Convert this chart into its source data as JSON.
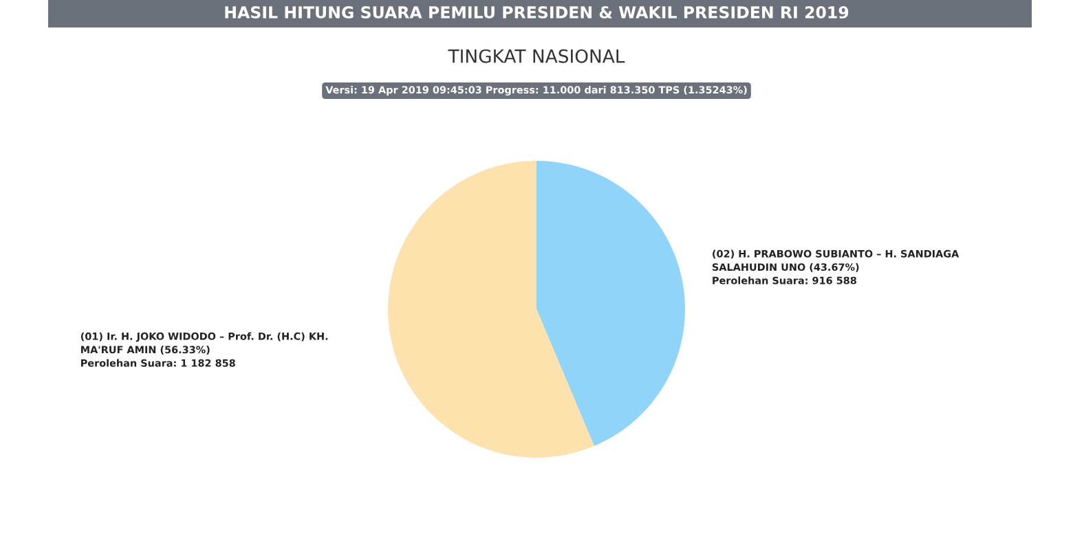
{
  "chart_data": {
    "type": "pie",
    "title": "TINGKAT NASIONAL",
    "subtitle": "Versi: 19 Apr 2019 09:45:03 Progress: 11.000 dari 813.350 TPS (1.35243%)",
    "annotations": [
      "HASIL HITUNG SUARA PEMILU PRESIDEN & WAKIL PRESIDEN RI 2019"
    ],
    "categories": [
      "(02) H. PRABOWO SUBIANTO – H. SANDIAGA\nSALAHUDIN UNO (43.67%)\nPerolehan Suara: 916 588",
      "(01) Ir. H. JOKO WIDODO – Prof. Dr. (H.C) KH.\nMA'RUF AMIN (56.33%)\nPerolehan Suara: 1 182 858"
    ],
    "values": [
      916588,
      1182858
    ],
    "colors": [
      "#90d4fa",
      "#fde2ae"
    ],
    "legend": false
  }
}
